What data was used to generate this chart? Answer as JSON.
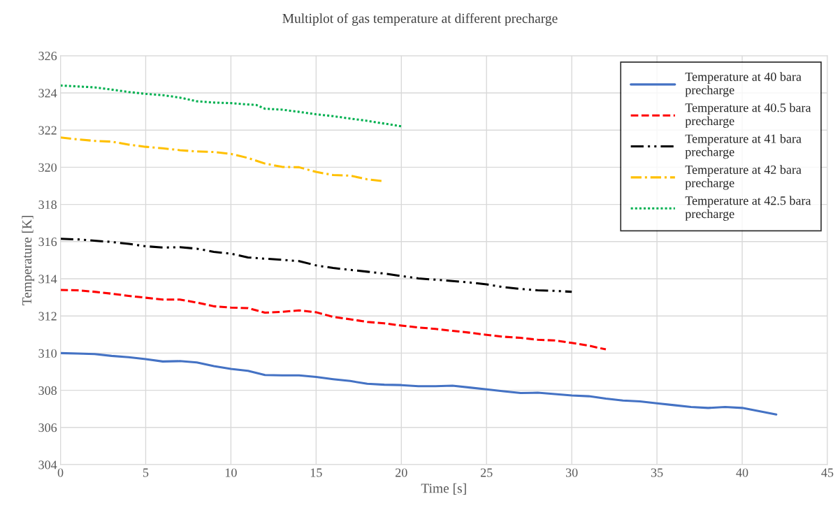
{
  "chart_data": {
    "type": "line",
    "title": "Multiplot of gas temperature at different precharge",
    "xlabel": "Time [s]",
    "ylabel": "Temperature [K]",
    "xlim": [
      0,
      45
    ],
    "xticks": [
      0,
      5,
      10,
      15,
      20,
      25,
      30,
      35,
      40,
      45
    ],
    "ylim": [
      304,
      326
    ],
    "yticks": [
      304,
      306,
      308,
      310,
      312,
      314,
      316,
      318,
      320,
      322,
      324,
      326
    ],
    "grid": true,
    "legend": "top right",
    "marker": "none",
    "series": [
      {
        "name": "Temperature at 40 bara precharge",
        "color": "#4472c4",
        "line_style": "solid",
        "x": [
          0,
          1,
          2,
          3,
          4,
          5,
          6,
          7,
          8,
          9,
          10,
          11,
          12,
          13,
          14,
          15,
          16,
          17,
          18,
          19,
          20,
          21,
          22,
          23,
          24,
          25,
          26,
          27,
          28,
          29,
          30,
          31,
          32,
          33,
          34,
          35,
          36,
          37,
          38,
          39,
          40,
          41,
          42
        ],
        "values": [
          310.0,
          309.98,
          309.95,
          309.85,
          309.78,
          309.68,
          309.55,
          309.57,
          309.5,
          309.3,
          309.15,
          309.05,
          308.82,
          308.8,
          308.8,
          308.72,
          308.6,
          308.5,
          308.35,
          308.3,
          308.28,
          308.22,
          308.22,
          308.25,
          308.15,
          308.05,
          307.95,
          307.85,
          307.87,
          307.8,
          307.72,
          307.68,
          307.55,
          307.45,
          307.4,
          307.3,
          307.2,
          307.1,
          307.05,
          307.1,
          307.05,
          306.88,
          306.7
        ]
      },
      {
        "name": "Temperature at 40.5 bara precharge",
        "color": "#ff0000",
        "line_style": "dashed",
        "x": [
          0,
          1,
          2,
          3,
          4,
          5,
          6,
          7,
          8,
          9,
          10,
          11,
          12,
          13,
          14,
          15,
          16,
          17,
          18,
          19,
          20,
          21,
          22,
          23,
          24,
          25,
          26,
          27,
          28,
          29,
          30,
          31,
          32
        ],
        "values": [
          313.4,
          313.38,
          313.3,
          313.2,
          313.08,
          312.98,
          312.88,
          312.88,
          312.72,
          312.52,
          312.45,
          312.42,
          312.18,
          312.22,
          312.3,
          312.2,
          311.95,
          311.82,
          311.68,
          311.6,
          311.48,
          311.38,
          311.3,
          311.2,
          311.1,
          310.98,
          310.88,
          310.82,
          310.72,
          310.68,
          310.55,
          310.4,
          310.2
        ]
      },
      {
        "name": "Temperature at 41 bara precharge",
        "color": "#000000",
        "line_style": "dashdotdot",
        "x": [
          0,
          1,
          2,
          3,
          4,
          5,
          6,
          7,
          8,
          9,
          10,
          11,
          12,
          13,
          14,
          15,
          16,
          17,
          18,
          19,
          20,
          21,
          22,
          23,
          24,
          25,
          26,
          27,
          28,
          29,
          30
        ],
        "values": [
          316.15,
          316.12,
          316.05,
          315.98,
          315.88,
          315.75,
          315.68,
          315.7,
          315.62,
          315.45,
          315.35,
          315.15,
          315.08,
          315.02,
          314.95,
          314.72,
          314.58,
          314.48,
          314.38,
          314.28,
          314.15,
          314.02,
          313.95,
          313.88,
          313.8,
          313.7,
          313.55,
          313.45,
          313.38,
          313.35,
          313.3
        ]
      },
      {
        "name": "Temperature at 42 bara precharge",
        "color": "#ffc000",
        "line_style": "dashdot",
        "x": [
          0,
          1,
          2,
          3,
          4,
          5,
          6,
          7,
          8,
          9,
          10,
          11,
          12,
          13,
          14,
          15,
          16,
          17,
          18,
          19
        ],
        "values": [
          321.6,
          321.5,
          321.42,
          321.38,
          321.22,
          321.1,
          321.02,
          320.92,
          320.85,
          320.82,
          320.72,
          320.5,
          320.2,
          320.02,
          320.0,
          319.75,
          319.58,
          319.55,
          319.35,
          319.25
        ]
      },
      {
        "name": "Temperature at 42.5 bara precharge",
        "color": "#00b050",
        "line_style": "dotted",
        "x": [
          0,
          1,
          2,
          3,
          4,
          5,
          6,
          7,
          8,
          9,
          10,
          11,
          11.5,
          12,
          13,
          14,
          15,
          16,
          17,
          18,
          19,
          20
        ],
        "values": [
          324.4,
          324.35,
          324.3,
          324.18,
          324.05,
          323.95,
          323.88,
          323.75,
          323.55,
          323.48,
          323.45,
          323.38,
          323.35,
          323.15,
          323.1,
          322.98,
          322.85,
          322.75,
          322.62,
          322.5,
          322.35,
          322.2
        ]
      }
    ]
  }
}
